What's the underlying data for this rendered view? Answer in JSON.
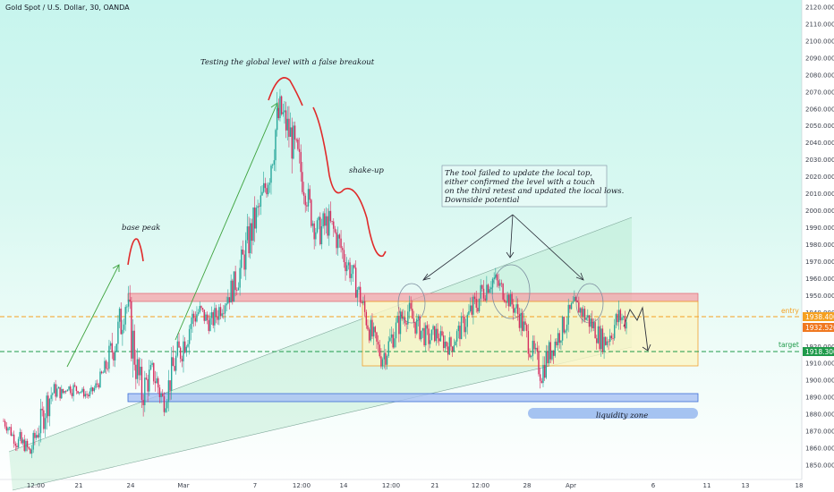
{
  "chart_data": {
    "type": "candlestick",
    "title": "Gold Spot / U.S. Dollar, 30, OANDA",
    "xlabel": "",
    "ylabel": "",
    "ylim": [
      1845,
      2122
    ],
    "y_ticks": [
      "2120.000",
      "2110.000",
      "2100.000",
      "2090.000",
      "2080.000",
      "2070.000",
      "2060.000",
      "2050.000",
      "2040.000",
      "2030.000",
      "2020.000",
      "2010.000",
      "2000.000",
      "1990.000",
      "1980.000",
      "1970.000",
      "1960.000",
      "1950.000",
      "1940.000",
      "1930.000",
      "1920.000",
      "1910.000",
      "1900.000",
      "1890.000",
      "1880.000",
      "1870.000",
      "1860.000",
      "1850.000"
    ],
    "x_ticks": [
      "12:00",
      "21",
      "24",
      "Mar",
      "7",
      "12:00",
      "14",
      "12:00",
      "21",
      "12:00",
      "28",
      "Apr",
      "6",
      "11",
      "13",
      "18"
    ],
    "price_path": [
      [
        1872,
        1880
      ],
      [
        1868,
        1876
      ],
      [
        1862,
        1869
      ],
      [
        1855,
        1870
      ],
      [
        1858,
        1866
      ],
      [
        1852,
        1862
      ],
      [
        1860,
        1875
      ],
      [
        1866,
        1884
      ],
      [
        1875,
        1896
      ],
      [
        1885,
        1900
      ],
      [
        1890,
        1898
      ],
      [
        1888,
        1896
      ],
      [
        1894,
        1898
      ],
      [
        1890,
        1900
      ],
      [
        1892,
        1897
      ],
      [
        1890,
        1895
      ],
      [
        1888,
        1894
      ],
      [
        1892,
        1898
      ],
      [
        1896,
        1904
      ],
      [
        1900,
        1912
      ],
      [
        1906,
        1924
      ],
      [
        1912,
        1934
      ],
      [
        1920,
        1948
      ],
      [
        1940,
        1954
      ],
      [
        1910,
        1946
      ],
      [
        1894,
        1920
      ],
      [
        1880,
        1904
      ],
      [
        1890,
        1910
      ],
      [
        1898,
        1912
      ],
      [
        1886,
        1908
      ],
      [
        1880,
        1894
      ],
      [
        1888,
        1906
      ],
      [
        1898,
        1920
      ],
      [
        1906,
        1926
      ],
      [
        1914,
        1934
      ],
      [
        1922,
        1944
      ],
      [
        1930,
        1948
      ],
      [
        1936,
        1946
      ],
      [
        1930,
        1942
      ],
      [
        1928,
        1940
      ],
      [
        1932,
        1946
      ],
      [
        1938,
        1952
      ],
      [
        1942,
        1958
      ],
      [
        1946,
        1962
      ],
      [
        1952,
        1970
      ],
      [
        1960,
        1982
      ],
      [
        1970,
        1994
      ],
      [
        1980,
        2004
      ],
      [
        1992,
        2010
      ],
      [
        2002,
        2022
      ],
      [
        2012,
        2040
      ],
      [
        2030,
        2062
      ],
      [
        2048,
        2070
      ],
      [
        2040,
        2062
      ],
      [
        2030,
        2056
      ],
      [
        2020,
        2044
      ],
      [
        2010,
        2034
      ],
      [
        2000,
        2018
      ],
      [
        1986,
        2004
      ],
      [
        1978,
        1996
      ],
      [
        1980,
        2000
      ],
      [
        1984,
        2002
      ],
      [
        1980,
        1996
      ],
      [
        1972,
        1990
      ],
      [
        1964,
        1982
      ],
      [
        1958,
        1974
      ],
      [
        1950,
        1966
      ],
      [
        1942,
        1956
      ],
      [
        1930,
        1946
      ],
      [
        1920,
        1936
      ],
      [
        1914,
        1928
      ],
      [
        1906,
        1922
      ],
      [
        1910,
        1926
      ],
      [
        1918,
        1934
      ],
      [
        1924,
        1940
      ],
      [
        1930,
        1946
      ],
      [
        1934,
        1948
      ],
      [
        1928,
        1942
      ],
      [
        1924,
        1938
      ],
      [
        1920,
        1934
      ],
      [
        1918,
        1930
      ],
      [
        1922,
        1934
      ],
      [
        1920,
        1930
      ],
      [
        1916,
        1928
      ],
      [
        1914,
        1926
      ],
      [
        1920,
        1932
      ],
      [
        1924,
        1938
      ],
      [
        1928,
        1944
      ],
      [
        1932,
        1950
      ],
      [
        1938,
        1954
      ],
      [
        1944,
        1962
      ],
      [
        1950,
        1964
      ],
      [
        1954,
        1966
      ],
      [
        1950,
        1962
      ],
      [
        1946,
        1958
      ],
      [
        1942,
        1952
      ],
      [
        1936,
        1950
      ],
      [
        1930,
        1944
      ],
      [
        1920,
        1936
      ],
      [
        1912,
        1926
      ],
      [
        1906,
        1920
      ],
      [
        1896,
        1912
      ],
      [
        1904,
        1922
      ],
      [
        1912,
        1926
      ],
      [
        1918,
        1932
      ],
      [
        1924,
        1938
      ],
      [
        1930,
        1944
      ],
      [
        1936,
        1950
      ],
      [
        1938,
        1948
      ],
      [
        1932,
        1946
      ],
      [
        1928,
        1942
      ],
      [
        1924,
        1938
      ],
      [
        1918,
        1932
      ],
      [
        1916,
        1930
      ],
      [
        1920,
        1936
      ],
      [
        1926,
        1942
      ],
      [
        1930,
        1946
      ],
      [
        1928,
        1940
      ]
    ],
    "annotations": [
      "Testing the global level with a false breakout",
      "shake-up",
      "base peak",
      "The tool failed to update the local top,",
      "either confirmed the level with a touch",
      "on the third retest and updated the local lows.",
      "Downside potential",
      "liquidity zone"
    ],
    "levels": {
      "entry_label": "entry",
      "entry_price": "1938.400",
      "last_price": "1932.520",
      "target_label": "target",
      "target_price": "1918.300"
    },
    "colors": {
      "up": "#26a69a",
      "down": "#d62d5e",
      "entry": "#f5a020",
      "target": "#1f9a4a",
      "resistance": "#f4a3a8",
      "support": "#a8c0f4"
    }
  }
}
